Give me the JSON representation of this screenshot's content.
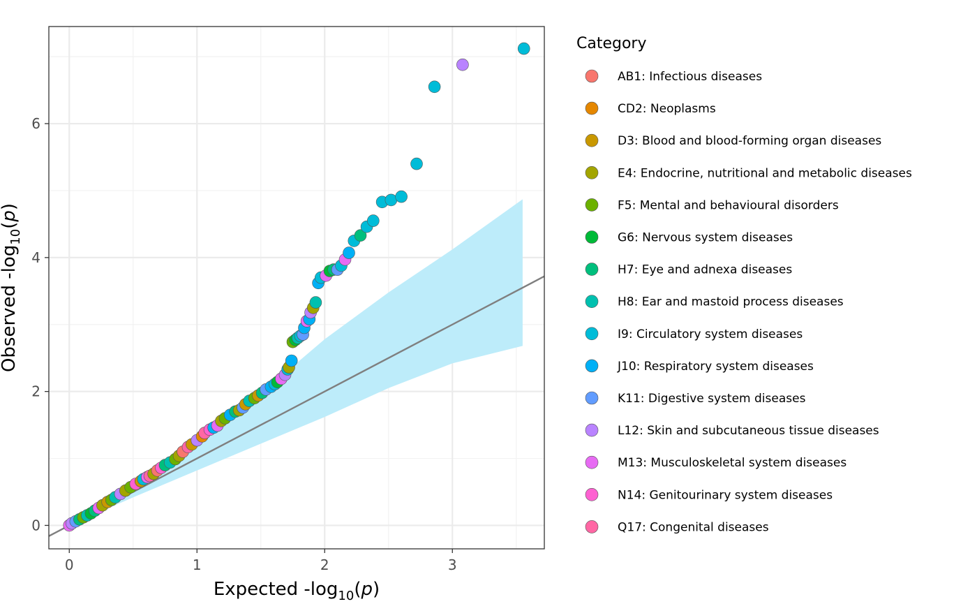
{
  "chart_data": {
    "type": "scatter",
    "title": "",
    "xlabel_parts": [
      "Expected -log",
      "10",
      "(",
      "p",
      ")"
    ],
    "ylabel_parts": [
      "Observed -log",
      "10",
      "(",
      "p",
      ")"
    ],
    "xlim": [
      -0.16,
      3.72
    ],
    "ylim": [
      -0.35,
      7.45
    ],
    "x_ticks": [
      0,
      1,
      2,
      3
    ],
    "y_ticks": [
      0,
      2,
      4,
      6
    ],
    "x_tick_labels": [
      "0",
      "1",
      "2",
      "3"
    ],
    "y_tick_labels": [
      "0",
      "2",
      "4",
      "6"
    ],
    "grid": true,
    "reference_line": {
      "slope": 1,
      "intercept": 0,
      "color": "#7f7f7f"
    },
    "confidence_band": {
      "color": "#bdecfa",
      "x": [
        0.0,
        0.5,
        1.0,
        1.5,
        2.0,
        2.5,
        3.0,
        3.55
      ],
      "upper": [
        0.02,
        0.62,
        1.25,
        1.97,
        2.78,
        3.48,
        4.12,
        4.87
      ],
      "lower": [
        0.0,
        0.42,
        0.82,
        1.22,
        1.62,
        2.05,
        2.42,
        2.68
      ]
    },
    "legend": {
      "title": "Category",
      "placement": "right",
      "entries": [
        {
          "key": "AB1",
          "label": "AB1: Infectious diseases",
          "color": "#F8766D"
        },
        {
          "key": "CD2",
          "label": "CD2: Neoplasms",
          "color": "#E58700"
        },
        {
          "key": "D3",
          "label": "D3: Blood and blood-forming organ diseases",
          "color": "#C99800"
        },
        {
          "key": "E4",
          "label": "E4: Endocrine, nutritional and metabolic diseases",
          "color": "#A3A500"
        },
        {
          "key": "F5",
          "label": "F5: Mental and behavioural disorders",
          "color": "#6BB100"
        },
        {
          "key": "G6",
          "label": "G6: Nervous system diseases",
          "color": "#00BA38"
        },
        {
          "key": "H7",
          "label": "H7: Eye and adnexa diseases",
          "color": "#00BF7D"
        },
        {
          "key": "H8",
          "label": "H8: Ear and mastoid process diseases",
          "color": "#00C0AF"
        },
        {
          "key": "I9",
          "label": "I9: Circulatory system diseases",
          "color": "#00BCD8"
        },
        {
          "key": "J10",
          "label": "J10: Respiratory system diseases",
          "color": "#00B0F6"
        },
        {
          "key": "K11",
          "label": "K11: Digestive system diseases",
          "color": "#619CFF"
        },
        {
          "key": "L12",
          "label": "L12: Skin and subcutaneous tissue diseases",
          "color": "#B983FF"
        },
        {
          "key": "M13",
          "label": "M13: Musculoskeletal system diseases",
          "color": "#E76BF3"
        },
        {
          "key": "N14",
          "label": "N14: Genitourinary system diseases",
          "color": "#FD61D1"
        },
        {
          "key": "Q17",
          "label": "Q17: Congenital diseases",
          "color": "#FF67A4"
        }
      ]
    },
    "points": [
      {
        "x": 0.0,
        "y": 0.0,
        "c": "M13"
      },
      {
        "x": 0.02,
        "y": 0.03,
        "c": "L12"
      },
      {
        "x": 0.05,
        "y": 0.06,
        "c": "K11"
      },
      {
        "x": 0.08,
        "y": 0.09,
        "c": "H7"
      },
      {
        "x": 0.11,
        "y": 0.12,
        "c": "F5"
      },
      {
        "x": 0.14,
        "y": 0.15,
        "c": "H8"
      },
      {
        "x": 0.17,
        "y": 0.18,
        "c": "G6"
      },
      {
        "x": 0.2,
        "y": 0.22,
        "c": "H7"
      },
      {
        "x": 0.23,
        "y": 0.26,
        "c": "M13"
      },
      {
        "x": 0.26,
        "y": 0.3,
        "c": "E4"
      },
      {
        "x": 0.3,
        "y": 0.35,
        "c": "D3"
      },
      {
        "x": 0.33,
        "y": 0.38,
        "c": "F5"
      },
      {
        "x": 0.36,
        "y": 0.42,
        "c": "H8"
      },
      {
        "x": 0.4,
        "y": 0.47,
        "c": "L12"
      },
      {
        "x": 0.44,
        "y": 0.52,
        "c": "E4"
      },
      {
        "x": 0.48,
        "y": 0.57,
        "c": "F5"
      },
      {
        "x": 0.52,
        "y": 0.62,
        "c": "N14"
      },
      {
        "x": 0.56,
        "y": 0.66,
        "c": "D3"
      },
      {
        "x": 0.58,
        "y": 0.69,
        "c": "I9"
      },
      {
        "x": 0.61,
        "y": 0.72,
        "c": "M13"
      },
      {
        "x": 0.63,
        "y": 0.74,
        "c": "Q17"
      },
      {
        "x": 0.66,
        "y": 0.77,
        "c": "E4"
      },
      {
        "x": 0.69,
        "y": 0.82,
        "c": "AB1"
      },
      {
        "x": 0.72,
        "y": 0.86,
        "c": "N14"
      },
      {
        "x": 0.75,
        "y": 0.9,
        "c": "H7"
      },
      {
        "x": 0.79,
        "y": 0.94,
        "c": "H8"
      },
      {
        "x": 0.83,
        "y": 0.99,
        "c": "F5"
      },
      {
        "x": 0.86,
        "y": 1.04,
        "c": "E4"
      },
      {
        "x": 0.89,
        "y": 1.1,
        "c": "AB1"
      },
      {
        "x": 0.93,
        "y": 1.17,
        "c": "Q17"
      },
      {
        "x": 0.96,
        "y": 1.21,
        "c": "D3"
      },
      {
        "x": 1.0,
        "y": 1.27,
        "c": "L12"
      },
      {
        "x": 1.04,
        "y": 1.33,
        "c": "CD2"
      },
      {
        "x": 1.06,
        "y": 1.38,
        "c": "Q17"
      },
      {
        "x": 1.1,
        "y": 1.43,
        "c": "N14"
      },
      {
        "x": 1.13,
        "y": 1.46,
        "c": "J10"
      },
      {
        "x": 1.16,
        "y": 1.49,
        "c": "M13"
      },
      {
        "x": 1.19,
        "y": 1.56,
        "c": "E4"
      },
      {
        "x": 1.22,
        "y": 1.6,
        "c": "F5"
      },
      {
        "x": 1.26,
        "y": 1.65,
        "c": "J10"
      },
      {
        "x": 1.3,
        "y": 1.7,
        "c": "H7"
      },
      {
        "x": 1.33,
        "y": 1.72,
        "c": "E4"
      },
      {
        "x": 1.36,
        "y": 1.76,
        "c": "K11"
      },
      {
        "x": 1.38,
        "y": 1.81,
        "c": "D3"
      },
      {
        "x": 1.41,
        "y": 1.86,
        "c": "H8"
      },
      {
        "x": 1.45,
        "y": 1.9,
        "c": "F5"
      },
      {
        "x": 1.48,
        "y": 1.94,
        "c": "D3"
      },
      {
        "x": 1.51,
        "y": 1.98,
        "c": "H7"
      },
      {
        "x": 1.54,
        "y": 2.03,
        "c": "K11"
      },
      {
        "x": 1.58,
        "y": 2.07,
        "c": "J10"
      },
      {
        "x": 1.61,
        "y": 2.11,
        "c": "I9"
      },
      {
        "x": 1.63,
        "y": 2.14,
        "c": "G6"
      },
      {
        "x": 1.66,
        "y": 2.19,
        "c": "M13"
      },
      {
        "x": 1.69,
        "y": 2.25,
        "c": "L12"
      },
      {
        "x": 1.71,
        "y": 2.33,
        "c": "I9"
      },
      {
        "x": 1.72,
        "y": 2.36,
        "c": "E4"
      },
      {
        "x": 1.74,
        "y": 2.46,
        "c": "J10"
      },
      {
        "x": 1.75,
        "y": 2.74,
        "c": "F5"
      },
      {
        "x": 1.77,
        "y": 2.77,
        "c": "G6"
      },
      {
        "x": 1.79,
        "y": 2.8,
        "c": "H8"
      },
      {
        "x": 1.81,
        "y": 2.83,
        "c": "I9"
      },
      {
        "x": 1.83,
        "y": 2.85,
        "c": "K11"
      },
      {
        "x": 1.84,
        "y": 2.95,
        "c": "J10"
      },
      {
        "x": 1.86,
        "y": 3.05,
        "c": "M13"
      },
      {
        "x": 1.88,
        "y": 3.08,
        "c": "J10"
      },
      {
        "x": 1.89,
        "y": 3.18,
        "c": "L12"
      },
      {
        "x": 1.91,
        "y": 3.25,
        "c": "E4"
      },
      {
        "x": 1.93,
        "y": 3.33,
        "c": "H8"
      },
      {
        "x": 1.95,
        "y": 3.62,
        "c": "J10"
      },
      {
        "x": 1.97,
        "y": 3.7,
        "c": "I9"
      },
      {
        "x": 2.01,
        "y": 3.73,
        "c": "M13"
      },
      {
        "x": 2.04,
        "y": 3.8,
        "c": "G6"
      },
      {
        "x": 2.07,
        "y": 3.82,
        "c": "H7"
      },
      {
        "x": 2.1,
        "y": 3.82,
        "c": "K11"
      },
      {
        "x": 2.13,
        "y": 3.88,
        "c": "I9"
      },
      {
        "x": 2.16,
        "y": 3.97,
        "c": "M13"
      },
      {
        "x": 2.19,
        "y": 4.07,
        "c": "J10"
      },
      {
        "x": 2.23,
        "y": 4.25,
        "c": "I9"
      },
      {
        "x": 2.28,
        "y": 4.33,
        "c": "H7"
      },
      {
        "x": 2.33,
        "y": 4.46,
        "c": "I9"
      },
      {
        "x": 2.38,
        "y": 4.55,
        "c": "I9"
      },
      {
        "x": 2.45,
        "y": 4.83,
        "c": "I9"
      },
      {
        "x": 2.52,
        "y": 4.86,
        "c": "I9"
      },
      {
        "x": 2.6,
        "y": 4.91,
        "c": "I9"
      },
      {
        "x": 2.72,
        "y": 5.4,
        "c": "I9"
      },
      {
        "x": 2.86,
        "y": 6.55,
        "c": "I9"
      },
      {
        "x": 3.08,
        "y": 6.88,
        "c": "L12"
      },
      {
        "x": 3.56,
        "y": 7.12,
        "c": "I9"
      }
    ]
  }
}
